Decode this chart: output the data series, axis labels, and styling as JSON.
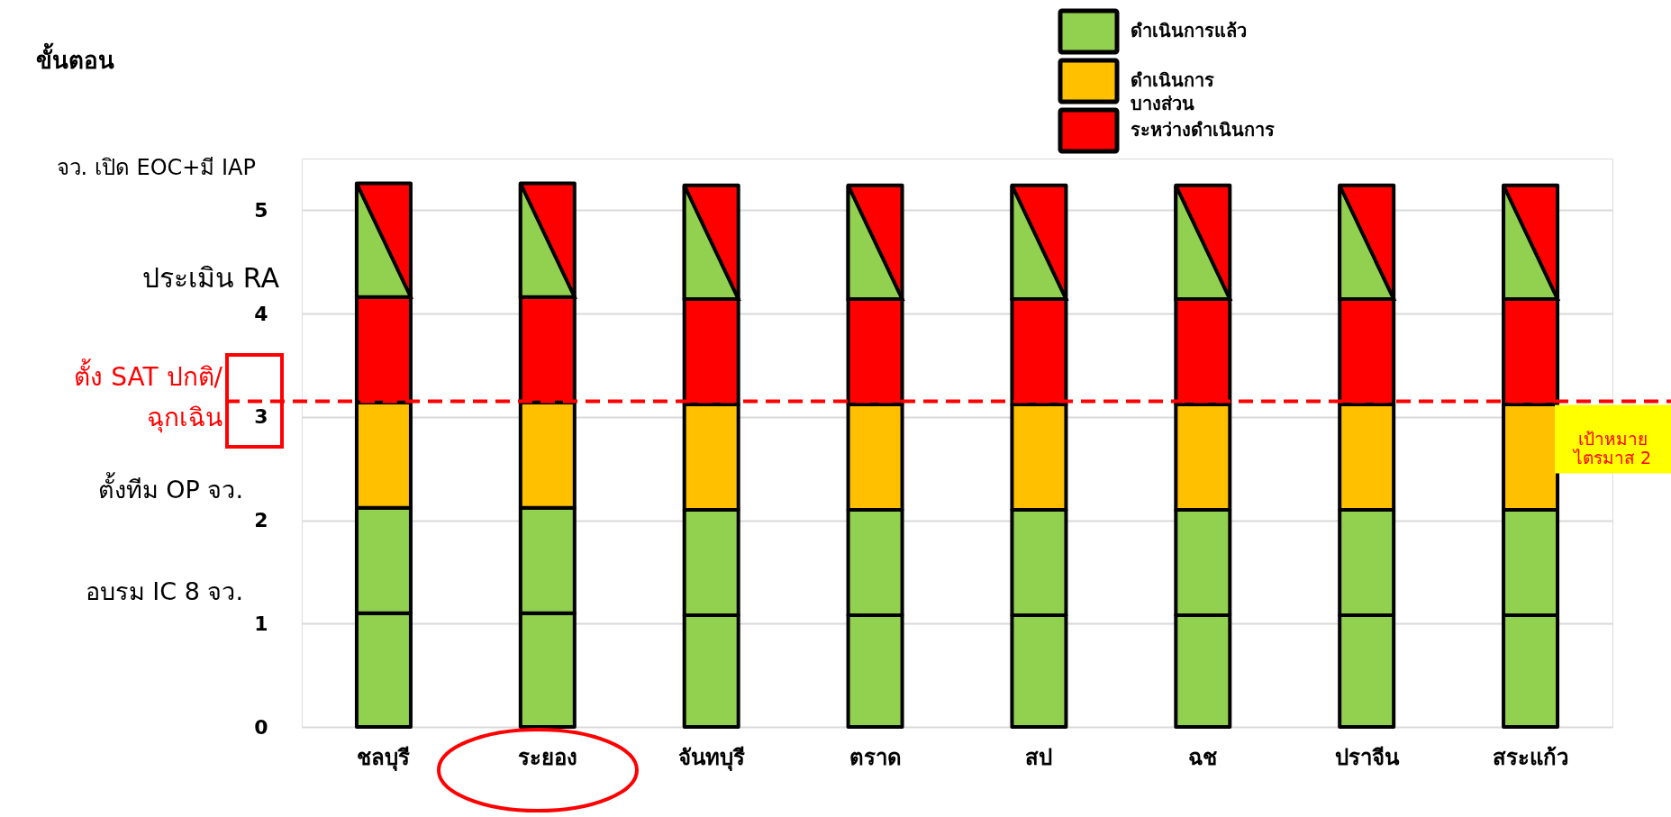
{
  "chart_data": {
    "type": "bar",
    "stacked": true,
    "categories": [
      "ชลบุรี",
      "ระยอง",
      "จันทบุรี",
      "ตราด",
      "สป",
      "ฉช",
      "ปราจีน",
      "สระแก้ว"
    ],
    "series": [
      {
        "name": "ดำเนินการแล้ว",
        "color": "#92d050",
        "values": [
          1.1,
          1.1,
          1.08,
          1.08,
          1.08,
          1.08,
          1.08,
          1.08
        ]
      },
      {
        "color": "#92d050",
        "values": [
          1.02,
          1.02,
          1.02,
          1.02,
          1.02,
          1.02,
          1.02,
          1.02
        ]
      },
      {
        "name": "ดำเนินการ\nบางส่วน",
        "color": "#ffc000",
        "values": [
          1.02,
          1.02,
          1.02,
          1.02,
          1.02,
          1.02,
          1.02,
          1.02
        ]
      },
      {
        "name": "ระหว่างดำเนินการ",
        "color": "#ff0000",
        "values": [
          1.02,
          1.02,
          1.02,
          1.02,
          1.02,
          1.02,
          1.02,
          1.02
        ]
      },
      {
        "color": "#ff0000",
        "values": [
          1.1,
          1.1,
          1.1,
          1.1,
          1.1,
          1.1,
          1.1,
          1.1
        ]
      }
    ],
    "ylim": [
      0,
      5.5
    ],
    "yticks": [
      0,
      1,
      2,
      3,
      4,
      5
    ],
    "grid": "y",
    "legend": "top right",
    "ref_lines": [
      {
        "axis": "y",
        "value": 3.15,
        "label": "เป้าหมาย\nไตรมาส 2",
        "color": "#ff0000",
        "line_style": "dashed"
      }
    ],
    "annotations": [
      "ขั้นตอน",
      "จว. เปิด EOC+มี IAP",
      "ประเมิน RA",
      "ตั้ง SAT ปกติ/\nฉุกเฉิน",
      "ตั้งทีม OP จว.",
      "อบรม IC 8 จว."
    ]
  }
}
